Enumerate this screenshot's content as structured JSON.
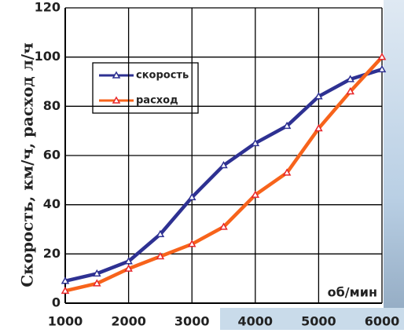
{
  "chart_data": {
    "type": "line",
    "y_label": "Скорость, км/ч, расход л/ч",
    "x_label": "об/мин",
    "x": [
      1000,
      1500,
      2000,
      2500,
      3000,
      3500,
      4000,
      4500,
      5000,
      5500,
      6000
    ],
    "series": [
      {
        "name": "скорость",
        "color": "#2e3192",
        "marker_color": "#2e3192",
        "values": [
          9,
          12,
          17,
          28,
          43,
          56,
          65,
          72,
          84,
          91,
          95
        ]
      },
      {
        "name": "расход",
        "color": "#f7631b",
        "marker_color": "#e8262a",
        "values": [
          5,
          8,
          14,
          19,
          24,
          31,
          44,
          53,
          71,
          86,
          100
        ]
      }
    ],
    "xlim": [
      1000,
      6000
    ],
    "xticks": [
      1000,
      2000,
      3000,
      4000,
      5000,
      6000
    ],
    "ylim": [
      0,
      120
    ],
    "yticks": [
      0,
      20,
      40,
      60,
      80,
      100,
      120
    ],
    "grid": true
  }
}
